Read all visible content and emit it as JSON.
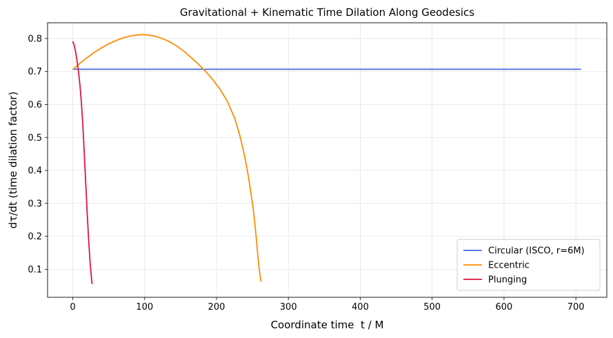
{
  "chart_data": {
    "type": "line",
    "title": "Gravitational + Kinematic Time Dilation Along Geodesics",
    "xlabel": "Coordinate time  t / M",
    "ylabel": "dτ/dt (time dilation factor)",
    "xlim": [
      -35,
      743
    ],
    "ylim": [
      0.015,
      0.848
    ],
    "xticks": [
      0,
      100,
      200,
      300,
      400,
      500,
      600,
      700
    ],
    "yticks": [
      0.1,
      0.2,
      0.3,
      0.4,
      0.5,
      0.6,
      0.7,
      0.8
    ],
    "grid": true,
    "legend_position": "lower-right",
    "series": [
      {
        "name": "Circular (ISCO, r=6M)",
        "color": "#4169e1",
        "x": [
          0,
          707
        ],
        "y": [
          0.707,
          0.707
        ]
      },
      {
        "name": "Eccentric",
        "color": "#ff8c00",
        "x": [
          0,
          10,
          20,
          30,
          40,
          50,
          60,
          70,
          80,
          90,
          97,
          105,
          115,
          125,
          135,
          145,
          155,
          165,
          175,
          185,
          195,
          205,
          215,
          225,
          232,
          238,
          243,
          247,
          251,
          254,
          256,
          258,
          260,
          262
        ],
        "y": [
          0.706,
          0.725,
          0.742,
          0.758,
          0.772,
          0.784,
          0.794,
          0.802,
          0.808,
          0.811,
          0.812,
          0.811,
          0.807,
          0.8,
          0.79,
          0.777,
          0.761,
          0.742,
          0.722,
          0.7,
          0.675,
          0.646,
          0.61,
          0.56,
          0.51,
          0.455,
          0.4,
          0.345,
          0.285,
          0.225,
          0.18,
          0.13,
          0.09,
          0.062
        ]
      },
      {
        "name": "Plunging",
        "color": "#dc143c",
        "x": [
          0,
          2,
          4,
          6,
          8,
          10,
          12,
          14,
          16,
          18,
          20,
          22,
          24,
          26,
          27
        ],
        "y": [
          0.792,
          0.78,
          0.76,
          0.733,
          0.7,
          0.66,
          0.608,
          0.54,
          0.455,
          0.365,
          0.275,
          0.195,
          0.125,
          0.075,
          0.055
        ]
      }
    ]
  }
}
